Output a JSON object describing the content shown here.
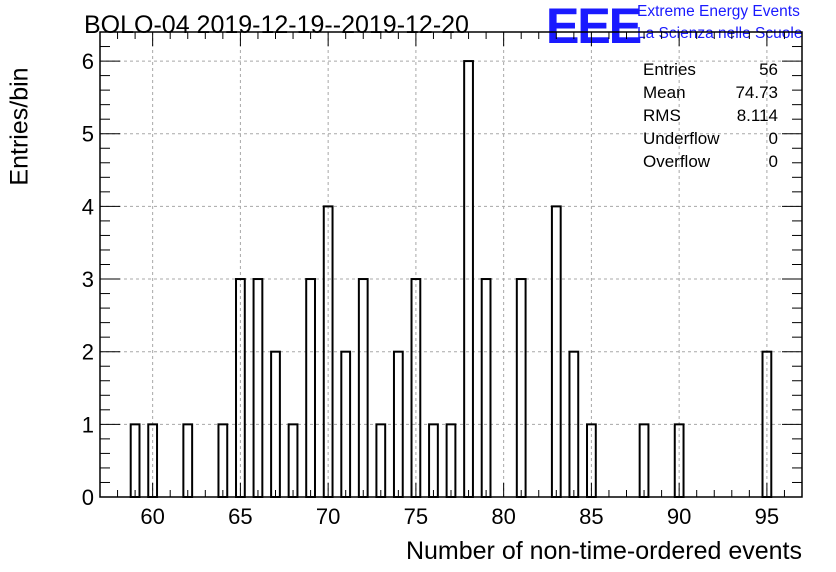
{
  "title": "BOLO-04 2019-12-19--2019-12-20",
  "logo": {
    "mark": "EEE",
    "line1": "Extreme Energy Events",
    "line2": "La Scienza nelle Scuole",
    "color": "#1a1aff"
  },
  "stats": [
    {
      "label": "Entries",
      "value": "56"
    },
    {
      "label": "Mean",
      "value": "74.73"
    },
    {
      "label": "RMS",
      "value": "8.114"
    },
    {
      "label": "Underflow",
      "value": "0"
    },
    {
      "label": "Overflow",
      "value": "0"
    }
  ],
  "chart_data": {
    "type": "bar",
    "histogram": true,
    "xlabel": "Number of non-time-ordered events",
    "ylabel": "Entries/bin",
    "xlim": [
      57,
      97
    ],
    "ylim": [
      0,
      6.4
    ],
    "bin_width": 0.5,
    "xticks": [
      60,
      65,
      70,
      75,
      80,
      85,
      90,
      95
    ],
    "yticks": [
      0,
      1,
      2,
      3,
      4,
      5,
      6
    ],
    "grid": true,
    "bins": [
      {
        "x": 59,
        "value": 1
      },
      {
        "x": 60,
        "value": 1
      },
      {
        "x": 62,
        "value": 1
      },
      {
        "x": 64,
        "value": 1
      },
      {
        "x": 65,
        "value": 3
      },
      {
        "x": 66,
        "value": 3
      },
      {
        "x": 67,
        "value": 2
      },
      {
        "x": 68,
        "value": 1
      },
      {
        "x": 69,
        "value": 3
      },
      {
        "x": 70,
        "value": 4
      },
      {
        "x": 71,
        "value": 2
      },
      {
        "x": 72,
        "value": 3
      },
      {
        "x": 73,
        "value": 1
      },
      {
        "x": 74,
        "value": 2
      },
      {
        "x": 75,
        "value": 3
      },
      {
        "x": 76,
        "value": 1
      },
      {
        "x": 77,
        "value": 1
      },
      {
        "x": 78,
        "value": 6
      },
      {
        "x": 79,
        "value": 3
      },
      {
        "x": 81,
        "value": 3
      },
      {
        "x": 83,
        "value": 4
      },
      {
        "x": 84,
        "value": 2
      },
      {
        "x": 85,
        "value": 1
      },
      {
        "x": 88,
        "value": 1
      },
      {
        "x": 90,
        "value": 1
      },
      {
        "x": 95,
        "value": 2
      }
    ]
  }
}
